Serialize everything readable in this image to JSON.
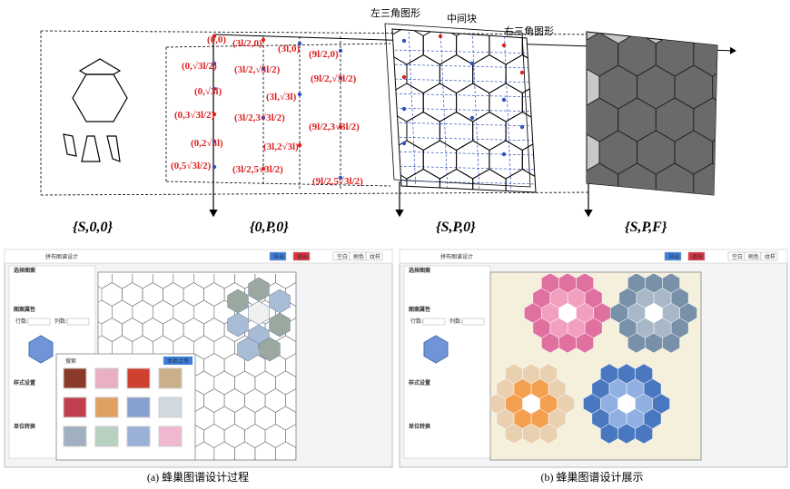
{
  "diagram": {
    "stages": [
      "{S,0,0}",
      "{0,P,0}",
      "{S,P,0}",
      "{S,P,F}"
    ],
    "parts": [
      "左三角图形",
      "中间块",
      "右三角图形"
    ],
    "coordinates": [
      "(0,0)",
      "(3l/2,0)",
      "(3l,0)",
      "(9l/2,0)",
      "(0,√3l/2)",
      "(3l/2,√3l/2)",
      "(9l/2,√3l/2)",
      "(0,√3l)",
      "(3l,√3l)",
      "(0,3√3l/2)",
      "(3l/2,3√3l/2)",
      "(9l/2,3√3l/2)",
      "(0,2√3l)",
      "(3l,2√3l)",
      "(0,5√3l/2)",
      "(3l/2,5√3l/2)",
      "(9l/2,5√3l/2)"
    ]
  },
  "screenshot_a": {
    "app_title": "拼布图谱设计",
    "buttons": [
      "导出",
      "退出",
      "空白",
      "刷色",
      "纹样"
    ],
    "panels": [
      "选择图案",
      "图案属性",
      "样式设置",
      "单位转换"
    ],
    "fields": [
      "行数:",
      "列数:"
    ],
    "dialog_title": "搜索",
    "dialog_button": "本地上传"
  },
  "screenshot_b": {
    "app_title": "拼布图谱设计",
    "buttons": [
      "导出",
      "退出",
      "空白",
      "刷色",
      "纹样"
    ],
    "panels": [
      "选择图案",
      "图案属性",
      "样式设置",
      "单位转换"
    ],
    "fields": [
      "行数:",
      "列数:"
    ]
  },
  "captions": [
    "(a) 蜂巢图谱设计过程",
    "(b) 蜂巢图谱设计展示"
  ]
}
